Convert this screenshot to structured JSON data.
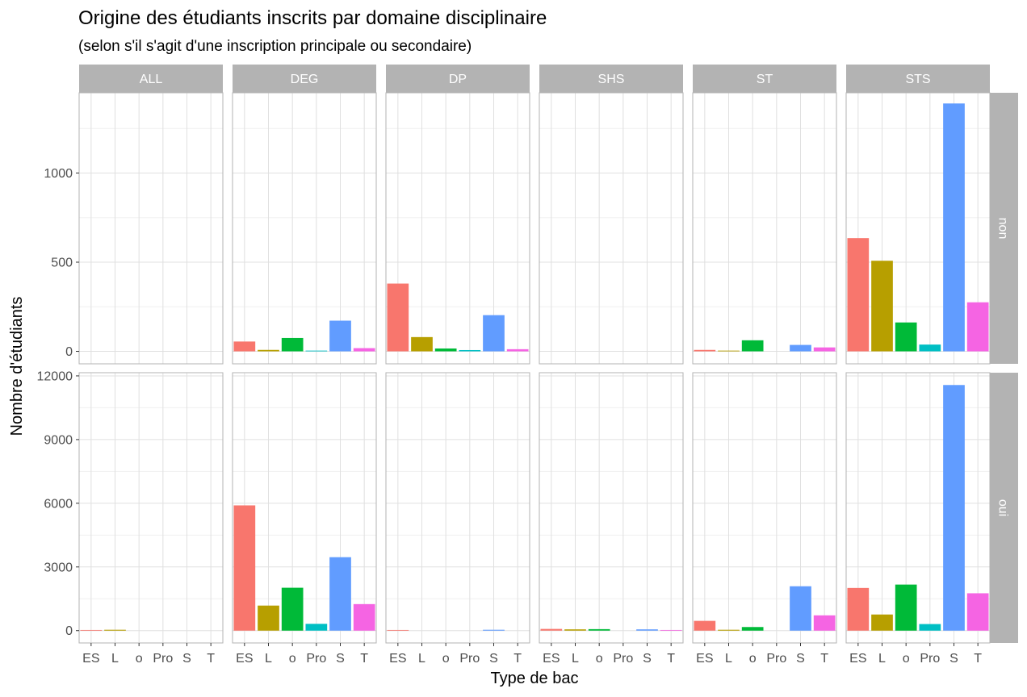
{
  "chart_data": {
    "type": "bar",
    "title": "Origine des étudiants inscrits par domaine disciplinaire",
    "subtitle": "(selon s'il s'agit d'une inscription principale ou secondaire)",
    "xlabel": "Type de bac",
    "ylabel": "Nombre d'étudiants",
    "categories": [
      "ES",
      "L",
      "o",
      "Pro",
      "S",
      "T"
    ],
    "facet_columns": [
      "ALL",
      "DEG",
      "DP",
      "SHS",
      "ST",
      "STS"
    ],
    "facet_rows": [
      "non",
      "oui"
    ],
    "grid": true,
    "colors": [
      "#F8766D",
      "#B79F00",
      "#00BA38",
      "#00BFC4",
      "#619CFF",
      "#F564E3"
    ],
    "strip_color": "#b3b3b3",
    "rows": [
      {
        "name": "non",
        "ylim": [
          -70,
          1450
        ],
        "yticks": [
          0,
          500,
          1000
        ],
        "values": {
          "ALL": [
            0,
            0,
            0,
            0,
            0,
            0
          ],
          "DEG": [
            55,
            8,
            75,
            4,
            172,
            18
          ],
          "DP": [
            380,
            80,
            16,
            7,
            203,
            12
          ],
          "SHS": [
            0,
            0,
            0,
            0,
            0,
            0
          ],
          "ST": [
            8,
            4,
            62,
            0,
            36,
            22
          ],
          "STS": [
            635,
            508,
            162,
            38,
            1390,
            275
          ]
        }
      },
      {
        "name": "oui",
        "ylim": [
          -580,
          12150
        ],
        "yticks": [
          0,
          3000,
          6000,
          9000,
          12000
        ],
        "values": {
          "ALL": [
            30,
            40,
            0,
            0,
            0,
            0
          ],
          "DEG": [
            5900,
            1180,
            2020,
            320,
            3460,
            1250
          ],
          "DP": [
            30,
            0,
            0,
            0,
            40,
            0
          ],
          "SHS": [
            80,
            60,
            70,
            0,
            60,
            30
          ],
          "ST": [
            460,
            40,
            170,
            0,
            2090,
            720
          ],
          "STS": [
            2010,
            760,
            2170,
            310,
            11570,
            1760
          ]
        }
      }
    ]
  }
}
